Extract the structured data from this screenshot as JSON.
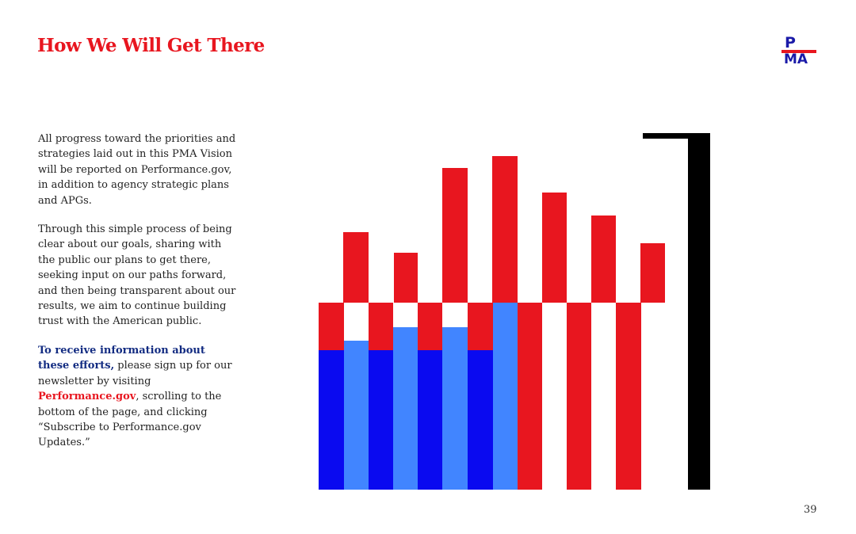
{
  "title": "How We Will Get There",
  "logo": {
    "top": "P",
    "bottom": "MA"
  },
  "paragraphs": {
    "p1": "All progress toward the priorities and strategies laid out in this PMA Vision will be reported on Performance.gov, in addition to agency strategic plans and APGs.",
    "p2": "Through this simple process of being clear about our goals, sharing with the public our plans to get there, seeking input on our paths forward, and then being transparent about our results, we aim to continue building trust with the American public.",
    "p3_lead": "To receive information about these efforts,",
    "p3_mid": " please sign up for our newsletter by visiting ",
    "p3_link": "Performance.gov",
    "p3_end": ", scrolling to the bottom of the page, and clicking “Subscribe to Performance.gov Updates.”"
  },
  "page_number": "39",
  "colors": {
    "red": "#e8161f",
    "navy": "#132c82",
    "blue": "#0a0af0",
    "light_blue": "#4185ff",
    "black": "#000000"
  }
}
